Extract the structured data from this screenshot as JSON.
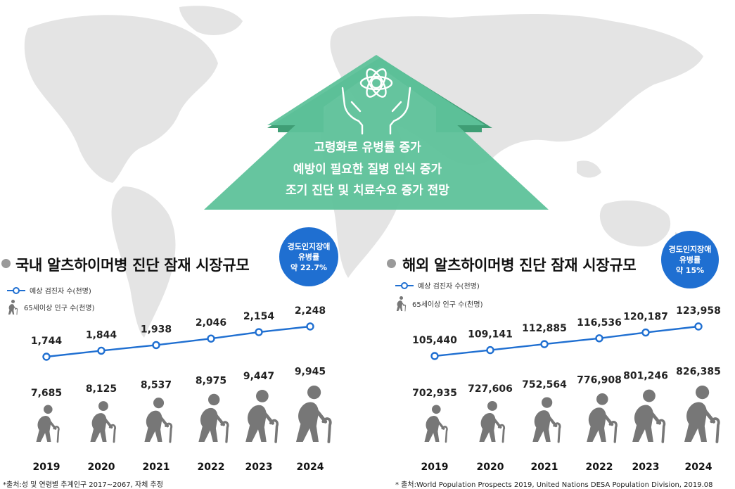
{
  "headline": {
    "lines": [
      "고령화로 유병률 증가",
      "예방이 필요한 질병 인식 증가",
      "조기 진단 및 치료수요 증가 전망"
    ],
    "icon": "hands-brain-icon"
  },
  "colors": {
    "arrow": "#5ec29a",
    "arrow_shadow": "#3f9e75",
    "badge": "#1f6fd1",
    "line": "#1f6fd1",
    "person": "#777777",
    "map": "#e4e4e4"
  },
  "panels": [
    {
      "title": "국내 알츠하이머병 진단 잠재 시장규모",
      "badge": [
        "경도인지장애",
        "유병률",
        "약 22.7%"
      ],
      "legend_line": "예상 검진자 수(천명)",
      "legend_person": "65세이상 인구 수(천명)",
      "source": "*출처:성 및 연령별 추계인구 2017~2067, 자체 추정"
    },
    {
      "title": "해외 알츠하이머병 진단 잠재 시장규모",
      "badge": [
        "경도인지장애",
        "유병률",
        "약 15%"
      ],
      "legend_line": "예상 검진자 수(천명)",
      "legend_person": "65세이상 인구 수(천명)",
      "source": "* 출처:World Population Prospects 2019, United Nations DESA Population Division, 2019.08"
    }
  ],
  "chart_data": [
    {
      "type": "line",
      "title": "국내 알츠하이머병 진단 잠재 시장규모",
      "categories": [
        "2019",
        "2020",
        "2021",
        "2022",
        "2023",
        "2024"
      ],
      "series": [
        {
          "name": "예상 검진자 수(천명)",
          "values": [
            1744,
            1844,
            1938,
            2046,
            2154,
            2248
          ],
          "labels": [
            "1,744",
            "1,844",
            "1,938",
            "2,046",
            "2,154",
            "2,248"
          ]
        },
        {
          "name": "65세이상 인구 수(천명)",
          "values": [
            7685,
            8125,
            8537,
            8975,
            9447,
            9945
          ],
          "labels": [
            "7,685",
            "8,125",
            "8,537",
            "8,975",
            "9,447",
            "9,945"
          ]
        }
      ]
    },
    {
      "type": "line",
      "title": "해외 알츠하이머병 진단 잠재 시장규모",
      "categories": [
        "2019",
        "2020",
        "2021",
        "2022",
        "2023",
        "2024"
      ],
      "series": [
        {
          "name": "예상 검진자 수(천명)",
          "values": [
            105440,
            109141,
            112885,
            116536,
            120187,
            123958
          ],
          "labels": [
            "105,440",
            "109,141",
            "112,885",
            "116,536",
            "120,187",
            "123,958"
          ]
        },
        {
          "name": "65세이상 인구 수(천명)",
          "values": [
            702935,
            727606,
            752564,
            776908,
            801246,
            826385
          ],
          "labels": [
            "702,935",
            "727,606",
            "752,564",
            "776,908",
            "801,246",
            "826,385"
          ]
        }
      ]
    }
  ]
}
